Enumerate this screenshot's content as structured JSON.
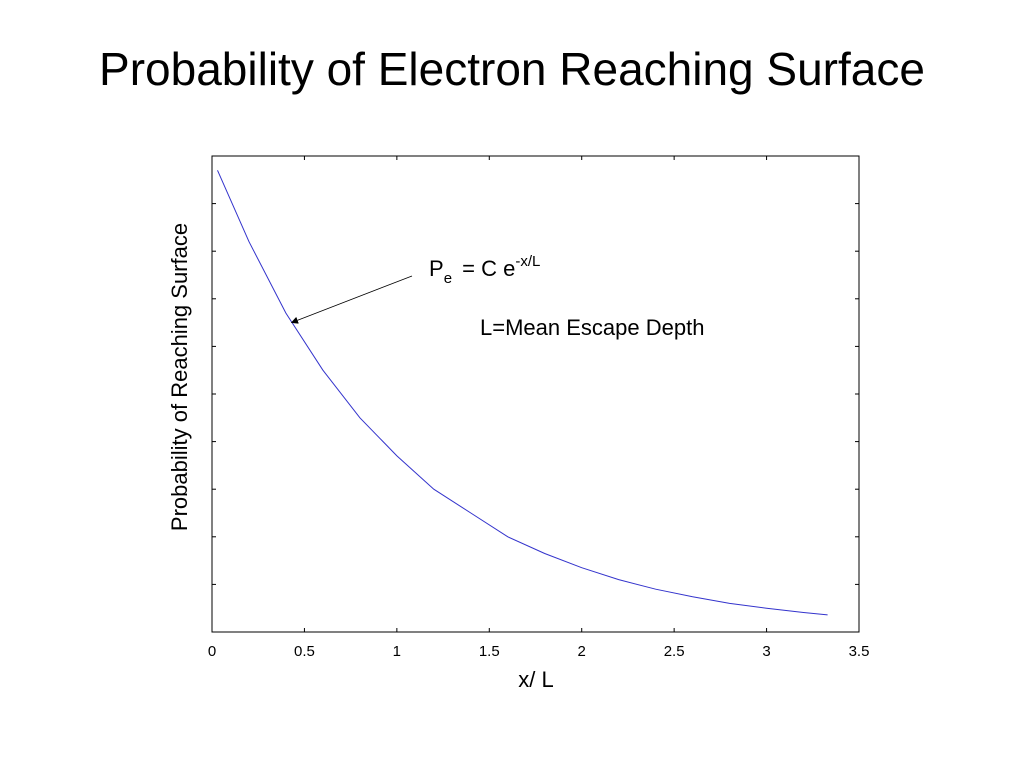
{
  "slide": {
    "title": "Probability of Electron Reaching Surface"
  },
  "chart_data": {
    "type": "line",
    "title": "",
    "xlabel": "x/ L",
    "ylabel": "Probability of Reaching Surface",
    "xlim": [
      0,
      3.5
    ],
    "ylim": [
      0,
      1
    ],
    "xticks": [
      "0",
      "0.5",
      "1",
      "1.5",
      "2",
      "2.5",
      "3",
      "3.5"
    ],
    "grid": false,
    "series": [
      {
        "color": "#3333cc",
        "x": [
          0.03,
          0.2,
          0.4,
          0.6,
          0.8,
          1.0,
          1.2,
          1.4,
          1.6,
          1.8,
          2.0,
          2.2,
          2.4,
          2.6,
          2.8,
          3.0,
          3.2,
          3.33
        ],
        "y": [
          0.97,
          0.82,
          0.67,
          0.55,
          0.45,
          0.37,
          0.3,
          0.25,
          0.2,
          0.165,
          0.135,
          0.11,
          0.09,
          0.074,
          0.06,
          0.05,
          0.041,
          0.036
        ]
      }
    ],
    "annotations": {
      "formula": {
        "base": "P",
        "sub": "e",
        "rest": " = C e",
        "sup": "-x/L"
      },
      "note": "L=Mean Escape Depth",
      "arrow_target_x": 0.43,
      "arrow_target_y": 0.65
    }
  }
}
